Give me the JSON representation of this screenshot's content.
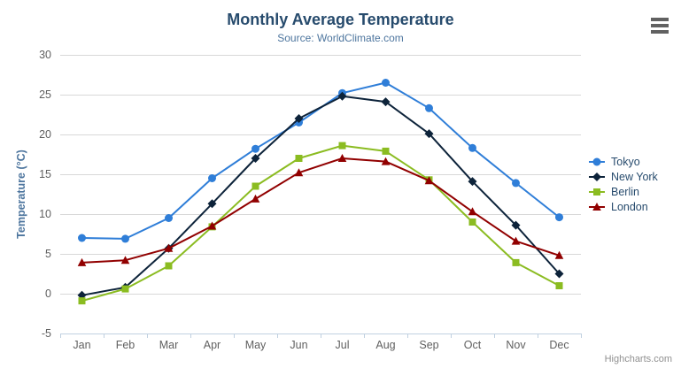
{
  "header": {
    "title": "Monthly Average Temperature",
    "subtitle": "Source: WorldClimate.com"
  },
  "credits_label": "Highcharts.com",
  "chart_data": {
    "type": "line",
    "title": "Monthly Average Temperature",
    "subtitle": "Source: WorldClimate.com",
    "categories": [
      "Jan",
      "Feb",
      "Mar",
      "Apr",
      "May",
      "Jun",
      "Jul",
      "Aug",
      "Sep",
      "Oct",
      "Nov",
      "Dec"
    ],
    "series": [
      {
        "name": "Tokyo",
        "color": "#2f7ed8",
        "marker": "circle",
        "values": [
          7.0,
          6.9,
          9.5,
          14.5,
          18.2,
          21.5,
          25.2,
          26.5,
          23.3,
          18.3,
          13.9,
          9.6
        ]
      },
      {
        "name": "New York",
        "color": "#0d233a",
        "marker": "diamond",
        "values": [
          -0.2,
          0.8,
          5.7,
          11.3,
          17.0,
          22.0,
          24.8,
          24.1,
          20.1,
          14.1,
          8.6,
          2.5
        ]
      },
      {
        "name": "Berlin",
        "color": "#8bbc21",
        "marker": "square",
        "values": [
          -0.9,
          0.6,
          3.5,
          8.4,
          13.5,
          17.0,
          18.6,
          17.9,
          14.3,
          9.0,
          3.9,
          1.0
        ]
      },
      {
        "name": "London",
        "color": "#910000",
        "marker": "triangle",
        "values": [
          3.9,
          4.2,
          5.7,
          8.5,
          11.9,
          15.2,
          17.0,
          16.6,
          14.2,
          10.3,
          6.6,
          4.8
        ]
      }
    ],
    "xlabel": "",
    "ylabel": "Temperature (°C)",
    "ylim": [
      -5,
      30
    ],
    "ytick_step": 5,
    "grid": true,
    "legend_position": "right"
  },
  "colors": {
    "title_text": "#274b6d",
    "subtitle_text": "#4d759e",
    "axis_title_text": "#4d759e",
    "tick_label_text": "#606060",
    "grid_line": "#d8d8d8",
    "axis_line": "#c0d0e0",
    "legend_text": "#274b6d",
    "credits_text": "#909090",
    "menu_icon": "#616161"
  }
}
